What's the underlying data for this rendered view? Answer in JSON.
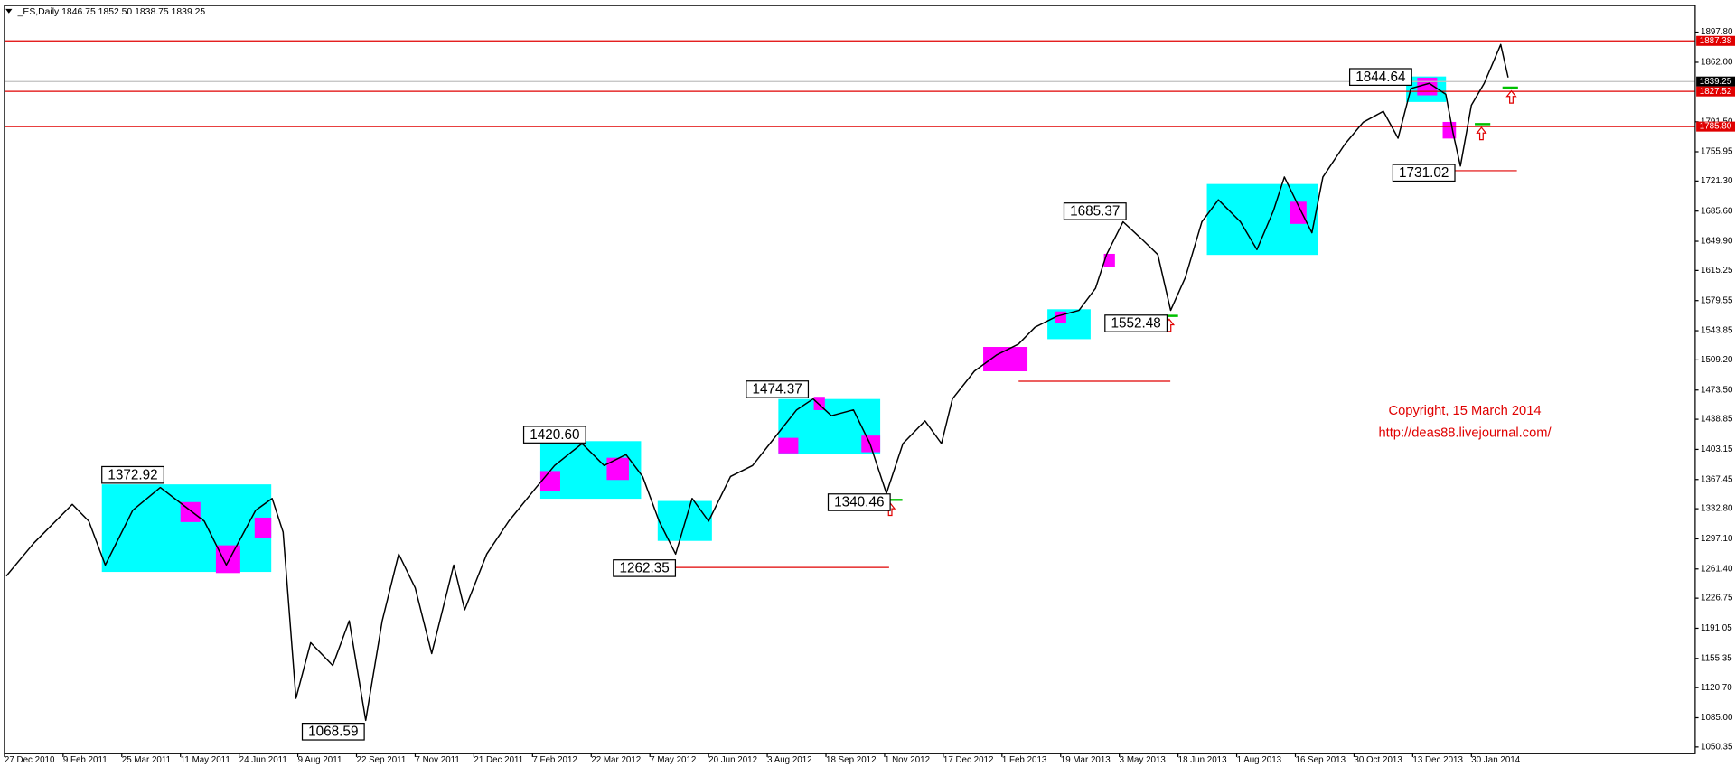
{
  "chart_data": {
    "type": "line",
    "title": "_ES,Daily 1846.75 1852.50 1838.75 1839.25",
    "x": [
      1,
      16,
      37,
      46,
      55,
      70,
      85,
      97,
      109,
      121,
      137,
      146,
      152,
      159,
      167,
      179,
      188,
      197,
      206,
      215,
      224,
      233,
      245,
      251,
      263,
      275,
      290,
      300,
      315,
      327,
      339,
      348,
      357,
      366,
      375,
      384,
      396,
      408,
      420,
      432,
      441,
      451,
      463,
      472,
      481,
      490,
      502,
      511,
      517,
      529,
      541,
      553,
      562,
      574,
      586,
      595,
      601,
      610,
      620,
      629,
      636,
      644,
      653,
      662,
      674,
      683,
      692,
      698,
      707,
      713,
      719,
      731,
      741,
      752,
      760,
      767,
      777,
      786,
      790,
      794,
      800,
      807,
      816,
      820
    ],
    "series": [
      {
        "name": "_ES",
        "color": "#000000",
        "values": [
          1253,
          1292,
          1338,
          1318,
          1266,
          1331,
          1358,
          1338,
          1318,
          1266,
          1331,
          1345,
          1305,
          1108,
          1174,
          1147,
          1200,
          1082,
          1200,
          1279,
          1239,
          1161,
          1266,
          1213,
          1279,
          1318,
          1358,
          1384,
          1410,
          1384,
          1397,
          1371,
          1318,
          1279,
          1345,
          1318,
          1371,
          1384,
          1417,
          1450,
          1463,
          1443,
          1450,
          1410,
          1351,
          1410,
          1437,
          1410,
          1463,
          1496,
          1515,
          1528,
          1548,
          1561,
          1568,
          1594,
          1634,
          1673,
          1653,
          1634,
          1568,
          1607,
          1673,
          1699,
          1673,
          1640,
          1686,
          1726,
          1686,
          1660,
          1726,
          1765,
          1791,
          1804,
          1772,
          1831,
          1837,
          1824,
          1778,
          1739,
          1811,
          1837,
          1883,
          1844
        ]
      }
    ],
    "xlim": [
      0,
      922
    ],
    "xticks": [
      {
        "value": 0,
        "label": "27 Dec 2010"
      },
      {
        "value": 32,
        "label": "9 Feb 2011"
      },
      {
        "value": 64,
        "label": "25 Mar 2011"
      },
      {
        "value": 96,
        "label": "11 May 2011"
      },
      {
        "value": 128,
        "label": "24 Jun 2011"
      },
      {
        "value": 160,
        "label": "9 Aug 2011"
      },
      {
        "value": 192,
        "label": "22 Sep 2011"
      },
      {
        "value": 224,
        "label": "7 Nov 2011"
      },
      {
        "value": 256,
        "label": "21 Dec 2011"
      },
      {
        "value": 288,
        "label": "7 Feb 2012"
      },
      {
        "value": 320,
        "label": "22 Mar 2012"
      },
      {
        "value": 352,
        "label": "7 May 2012"
      },
      {
        "value": 384,
        "label": "20 Jun 2012"
      },
      {
        "value": 416,
        "label": "3 Aug 2012"
      },
      {
        "value": 448,
        "label": "18 Sep 2012"
      },
      {
        "value": 480,
        "label": "1 Nov 2012"
      },
      {
        "value": 512,
        "label": "17 Dec 2012"
      },
      {
        "value": 544,
        "label": "1 Feb 2013"
      },
      {
        "value": 576,
        "label": "19 Mar 2013"
      },
      {
        "value": 608,
        "label": "3 May 2013"
      },
      {
        "value": 640,
        "label": "18 Jun 2013"
      },
      {
        "value": 672,
        "label": "1 Aug 2013"
      },
      {
        "value": 704,
        "label": "16 Sep 2013"
      },
      {
        "value": 736,
        "label": "30 Oct 2013"
      },
      {
        "value": 768,
        "label": "13 Dec 2013"
      },
      {
        "value": 800,
        "label": "30 Jan 2014"
      }
    ],
    "ylim": [
      1042.4,
      1929.3
    ],
    "yticks": [
      {
        "value": 1897.8,
        "label": "1897.80"
      },
      {
        "value": 1862,
        "label": "1862.00"
      },
      {
        "value": 1791.5,
        "label": "1791.50"
      },
      1755.95,
      {
        "value": 1721.3,
        "label": "1721.30"
      },
      {
        "value": 1685.6,
        "label": "1685.60"
      },
      {
        "value": 1649.9,
        "label": "1649.90"
      },
      1615.25,
      1579.55,
      1543.85,
      {
        "value": 1509.2,
        "label": "1509.20"
      },
      {
        "value": 1473.5,
        "label": "1473.50"
      },
      1438.85,
      1403.15,
      1367.45,
      {
        "value": 1332.8,
        "label": "1332.80"
      },
      {
        "value": 1297.1,
        "label": "1297.10"
      },
      {
        "value": 1261.4,
        "label": "1261.40"
      },
      1226.75,
      1191.05,
      1155.35,
      {
        "value": 1120.7,
        "label": "1120.70"
      },
      {
        "value": 1085,
        "label": "1085.00"
      },
      1050.35
    ],
    "price_levels": [
      {
        "value": 1887.38,
        "color": "#e00000"
      },
      {
        "value": 1839.25,
        "color": "#000000"
      },
      {
        "value": 1827.52,
        "color": "#e00000"
      },
      {
        "value": 1785.8,
        "label": "1785.80",
        "color": "#e00000"
      }
    ],
    "annotations": [
      {
        "value": 1372.92
      },
      {
        "value": 1420.6,
        "label": "1420.60"
      },
      {
        "value": 1474.37
      },
      {
        "value": 1262.35
      },
      {
        "value": 1340.46
      },
      {
        "value": 1068.59
      },
      {
        "value": 1685.37
      },
      {
        "value": 1552.48
      },
      {
        "value": 1844.64
      },
      {
        "value": 1731.02
      }
    ],
    "copyright": "Copyright, 15 March 2014",
    "url": "http://deas88.livejournal.com/"
  }
}
